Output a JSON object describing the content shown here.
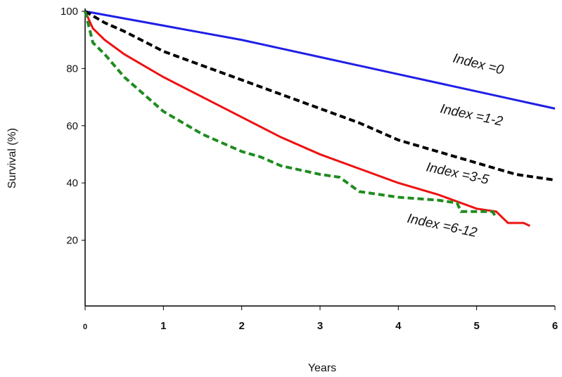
{
  "chart_data": {
    "type": "line",
    "x_label": "Years",
    "y_label": "Survival (%)",
    "xlim": [
      0,
      6
    ],
    "ylim": [
      -3,
      101
    ],
    "xticks": [
      0,
      1,
      2,
      3,
      4,
      5,
      6
    ],
    "yticks": [
      20,
      40,
      60,
      80,
      100
    ],
    "series": [
      {
        "name": "Index =0",
        "color": "#1f1fe6",
        "dashed": false,
        "x": [
          0,
          0.5,
          1,
          1.5,
          2,
          2.5,
          3,
          3.5,
          4,
          4.5,
          5,
          5.5,
          6
        ],
        "values": [
          100,
          97.5,
          95,
          92.5,
          90,
          87,
          84,
          81,
          78,
          75,
          72,
          69,
          66
        ]
      },
      {
        "name": "Index =1-2",
        "color": "#000000",
        "dashed": true,
        "x": [
          0,
          0.25,
          0.5,
          1,
          1.5,
          2,
          2.5,
          3,
          3.5,
          4,
          4.5,
          5,
          5.5,
          6
        ],
        "values": [
          100,
          96,
          93,
          86,
          81,
          76,
          71,
          66,
          61,
          55,
          51,
          47,
          43,
          41
        ]
      },
      {
        "name": "Index =3-5",
        "color": "#ee1111",
        "dashed": false,
        "x": [
          0,
          0.1,
          0.25,
          0.5,
          1,
          1.5,
          2,
          2.5,
          3,
          3.5,
          4,
          4.5,
          5,
          5.25,
          5.4,
          5.6,
          5.68
        ],
        "values": [
          100,
          94,
          90,
          85,
          77,
          70,
          63,
          56,
          50,
          45,
          40,
          36,
          31,
          30,
          26,
          26,
          25
        ]
      },
      {
        "name": "Index =6-12",
        "color": "#1e8c1e",
        "dashed": true,
        "x": [
          0,
          0.1,
          0.25,
          0.5,
          1,
          1.5,
          2,
          2.25,
          2.5,
          3,
          3.25,
          3.5,
          4,
          4.5,
          4.75,
          4.8,
          5,
          5.2,
          5.25
        ],
        "values": [
          100,
          89,
          85,
          77,
          65,
          57,
          51,
          49,
          46,
          43,
          42,
          37,
          35,
          34,
          33,
          30,
          30,
          30,
          28
        ]
      }
    ]
  }
}
